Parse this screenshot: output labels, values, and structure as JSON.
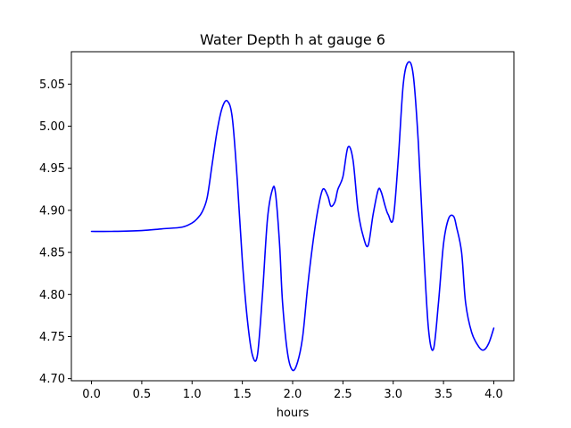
{
  "chart_data": {
    "type": "line",
    "title": "Water Depth h at gauge 6",
    "xlabel": "hours",
    "ylabel": "",
    "xlim": [
      -0.2,
      4.2
    ],
    "ylim": [
      4.6975,
      5.0885
    ],
    "xticks": [
      0.0,
      0.5,
      1.0,
      1.5,
      2.0,
      2.5,
      3.0,
      3.5,
      4.0
    ],
    "xtick_labels": [
      "0.0",
      "0.5",
      "1.0",
      "1.5",
      "2.0",
      "2.5",
      "3.0",
      "3.5",
      "4.0"
    ],
    "yticks": [
      4.7,
      4.75,
      4.8,
      4.85,
      4.9,
      4.95,
      5.0,
      5.05
    ],
    "ytick_labels": [
      "4.70",
      "4.75",
      "4.80",
      "4.85",
      "4.90",
      "4.95",
      "5.00",
      "5.05"
    ],
    "grid": false,
    "series": [
      {
        "color": "#0000ff",
        "x": [
          0.0,
          0.2,
          0.5,
          0.7,
          0.9,
          1.0,
          1.05,
          1.1,
          1.15,
          1.2,
          1.25,
          1.3,
          1.35,
          1.4,
          1.45,
          1.5,
          1.55,
          1.6,
          1.65,
          1.7,
          1.75,
          1.8,
          1.83,
          1.87,
          1.9,
          1.95,
          2.0,
          2.05,
          2.1,
          2.15,
          2.2,
          2.25,
          2.3,
          2.35,
          2.38,
          2.42,
          2.45,
          2.5,
          2.55,
          2.6,
          2.65,
          2.7,
          2.75,
          2.8,
          2.85,
          2.88,
          2.92,
          2.95,
          3.0,
          3.05,
          3.1,
          3.15,
          3.2,
          3.25,
          3.3,
          3.35,
          3.4,
          3.45,
          3.5,
          3.55,
          3.6,
          3.63,
          3.68,
          3.72,
          3.78,
          3.85,
          3.9,
          3.95,
          4.0
        ],
        "y": [
          4.875,
          4.875,
          4.876,
          4.878,
          4.88,
          4.885,
          4.89,
          4.898,
          4.915,
          4.955,
          4.995,
          5.022,
          5.03,
          5.01,
          4.935,
          4.84,
          4.77,
          4.728,
          4.728,
          4.8,
          4.89,
          4.925,
          4.92,
          4.86,
          4.79,
          4.73,
          4.71,
          4.72,
          4.75,
          4.81,
          4.86,
          4.9,
          4.925,
          4.917,
          4.905,
          4.91,
          4.925,
          4.94,
          4.975,
          4.96,
          4.9,
          4.87,
          4.858,
          4.895,
          4.924,
          4.922,
          4.905,
          4.895,
          4.89,
          4.96,
          5.05,
          5.076,
          5.06,
          4.98,
          4.86,
          4.76,
          4.735,
          4.79,
          4.86,
          4.89,
          4.893,
          4.88,
          4.85,
          4.79,
          4.755,
          4.738,
          4.734,
          4.742,
          4.76
        ]
      }
    ]
  }
}
